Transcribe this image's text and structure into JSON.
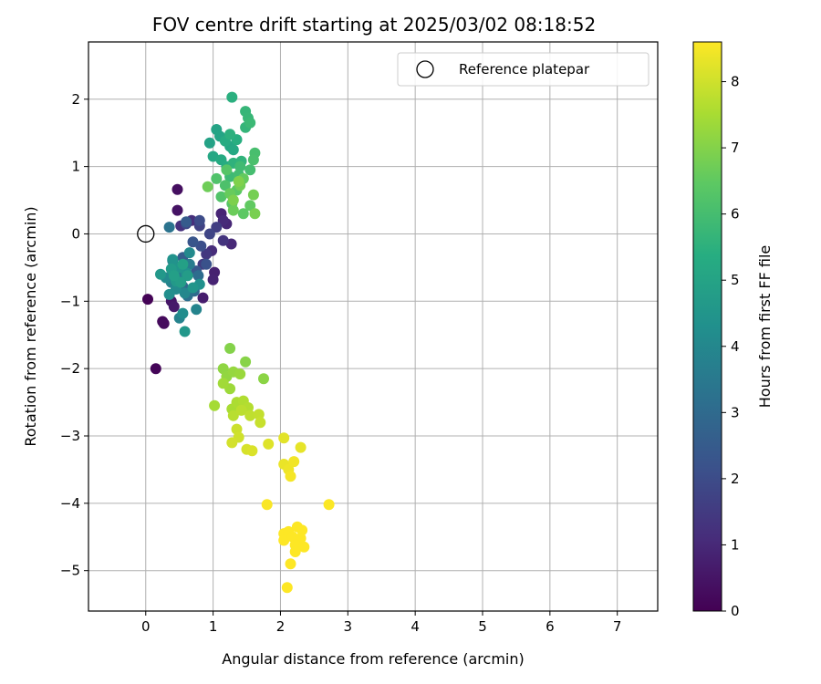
{
  "chart_data": {
    "type": "scatter",
    "title": "FOV centre drift starting at 2025/03/02 08:18:52",
    "xlabel": "Angular distance from reference (arcmin)",
    "ylabel": "Rotation from reference (arcmin)",
    "xlim": [
      -0.85,
      7.6
    ],
    "ylim": [
      -5.6,
      2.85
    ],
    "xticks": [
      0,
      1,
      2,
      3,
      4,
      5,
      6,
      7
    ],
    "xtick_labels": [
      "0",
      "1",
      "2",
      "3",
      "4",
      "5",
      "6",
      "7"
    ],
    "yticks": [
      2,
      1,
      0,
      -1,
      -2,
      -3,
      -4,
      -5
    ],
    "ytick_labels": [
      "2",
      "1",
      "0",
      "−1",
      "−2",
      "−3",
      "−4",
      "−5"
    ],
    "grid": true,
    "legend_position": "top-right",
    "reference": {
      "label": "Reference platepar",
      "x": 0,
      "y": 0
    },
    "colorbar": {
      "label": "Hours from first FF file",
      "colormap": "viridis",
      "range": [
        0,
        8.6
      ],
      "ticks": [
        0,
        1,
        2,
        3,
        4,
        5,
        6,
        7,
        8
      ],
      "tick_labels": [
        "0",
        "1",
        "2",
        "3",
        "4",
        "5",
        "6",
        "7",
        "8"
      ]
    },
    "points": [
      [
        0.03,
        -0.97,
        0.05
      ],
      [
        0.15,
        -2.0,
        0.1
      ],
      [
        0.25,
        -1.3,
        0.2
      ],
      [
        0.27,
        -1.33,
        0.25
      ],
      [
        0.47,
        0.66,
        0.35
      ],
      [
        0.47,
        0.35,
        0.45
      ],
      [
        0.38,
        -1.0,
        0.5
      ],
      [
        0.42,
        -1.08,
        0.6
      ],
      [
        0.85,
        -0.95,
        0.7
      ],
      [
        1.02,
        -0.57,
        0.8
      ],
      [
        1.0,
        -0.68,
        0.85
      ],
      [
        1.12,
        0.3,
        0.9
      ],
      [
        1.2,
        0.15,
        0.95
      ],
      [
        1.27,
        -0.15,
        1.0
      ],
      [
        1.15,
        0.2,
        1.05
      ],
      [
        0.98,
        -0.25,
        1.1
      ],
      [
        0.68,
        0.2,
        1.15
      ],
      [
        0.52,
        0.12,
        1.2
      ],
      [
        1.15,
        -0.1,
        1.3
      ],
      [
        0.9,
        -0.3,
        1.4
      ],
      [
        0.85,
        -0.45,
        1.5
      ],
      [
        1.05,
        0.1,
        1.6
      ],
      [
        0.8,
        0.12,
        1.7
      ],
      [
        0.95,
        0.0,
        1.8
      ],
      [
        0.6,
        0.15,
        1.9
      ],
      [
        0.8,
        0.2,
        2.0
      ],
      [
        0.82,
        -0.18,
        2.1
      ],
      [
        0.9,
        -0.45,
        2.2
      ],
      [
        0.7,
        -0.12,
        2.3
      ],
      [
        0.75,
        -0.55,
        2.4
      ],
      [
        0.6,
        0.18,
        2.5
      ],
      [
        0.55,
        -0.35,
        2.6
      ],
      [
        0.48,
        -0.58,
        2.7
      ],
      [
        0.42,
        -0.68,
        2.8
      ],
      [
        0.55,
        -0.78,
        2.9
      ],
      [
        0.72,
        -0.85,
        3.0
      ],
      [
        0.78,
        -0.62,
        3.1
      ],
      [
        0.62,
        -0.92,
        3.2
      ],
      [
        0.35,
        0.1,
        3.3
      ],
      [
        0.4,
        -0.4,
        3.4
      ],
      [
        0.45,
        -0.55,
        3.5
      ],
      [
        0.65,
        -0.45,
        3.6
      ],
      [
        0.52,
        -0.68,
        3.7
      ],
      [
        0.38,
        -0.72,
        3.8
      ],
      [
        0.5,
        -1.25,
        3.85
      ],
      [
        0.75,
        -1.12,
        3.9
      ],
      [
        0.58,
        -0.88,
        4.0
      ],
      [
        0.3,
        -0.65,
        4.05
      ],
      [
        0.65,
        -0.28,
        4.1
      ],
      [
        0.45,
        -0.82,
        4.15
      ],
      [
        0.55,
        -1.18,
        4.2
      ],
      [
        0.35,
        -0.9,
        4.25
      ],
      [
        0.8,
        -0.75,
        4.3
      ],
      [
        0.6,
        -0.58,
        4.35
      ],
      [
        0.4,
        -0.38,
        4.4
      ],
      [
        0.5,
        -0.5,
        4.45
      ],
      [
        0.7,
        -0.8,
        4.5
      ],
      [
        0.58,
        -1.45,
        4.55
      ],
      [
        0.22,
        -0.6,
        4.6
      ],
      [
        0.45,
        -0.7,
        4.65
      ],
      [
        0.38,
        -0.52,
        4.7
      ],
      [
        0.62,
        -0.62,
        4.75
      ],
      [
        0.52,
        -0.72,
        4.8
      ],
      [
        0.42,
        -0.62,
        4.85
      ],
      [
        0.55,
        -0.45,
        4.9
      ],
      [
        0.95,
        1.35,
        4.95
      ],
      [
        1.05,
        1.55,
        5.0
      ],
      [
        1.1,
        1.45,
        5.05
      ],
      [
        1.25,
        1.3,
        5.1
      ],
      [
        1.0,
        1.15,
        5.15
      ],
      [
        1.3,
        1.25,
        5.2
      ],
      [
        1.12,
        1.1,
        5.25
      ],
      [
        1.18,
        1.38,
        5.3
      ],
      [
        1.2,
        1.0,
        5.35
      ],
      [
        1.35,
        1.4,
        5.4
      ],
      [
        1.28,
        2.03,
        5.45
      ],
      [
        1.25,
        1.48,
        5.5
      ],
      [
        1.3,
        1.05,
        5.55
      ],
      [
        1.42,
        1.08,
        5.6
      ],
      [
        1.48,
        1.58,
        5.65
      ],
      [
        1.48,
        1.82,
        5.7
      ],
      [
        1.52,
        1.72,
        5.75
      ],
      [
        1.55,
        1.65,
        5.8
      ],
      [
        1.25,
        0.85,
        5.85
      ],
      [
        1.4,
        1.0,
        5.9
      ],
      [
        1.38,
        0.88,
        5.95
      ],
      [
        1.55,
        0.95,
        6.0
      ],
      [
        1.62,
        1.2,
        6.05
      ],
      [
        1.6,
        1.1,
        6.1
      ],
      [
        1.18,
        0.72,
        6.15
      ],
      [
        1.05,
        0.82,
        6.2
      ],
      [
        1.12,
        0.55,
        6.25
      ],
      [
        1.2,
        0.95,
        6.3
      ],
      [
        1.28,
        0.45,
        6.35
      ],
      [
        1.35,
        0.65,
        6.4
      ],
      [
        1.45,
        0.3,
        6.45
      ],
      [
        1.55,
        0.42,
        6.5
      ],
      [
        1.45,
        0.82,
        6.55
      ],
      [
        1.25,
        0.6,
        6.6
      ],
      [
        1.3,
        0.35,
        6.65
      ],
      [
        0.92,
        0.7,
        6.7
      ],
      [
        1.4,
        0.72,
        6.75
      ],
      [
        1.6,
        0.58,
        6.8
      ],
      [
        1.62,
        0.3,
        6.85
      ],
      [
        1.3,
        0.5,
        6.9
      ],
      [
        1.38,
        0.78,
        6.95
      ],
      [
        1.25,
        -1.7,
        7.0
      ],
      [
        1.48,
        -1.9,
        7.05
      ],
      [
        1.75,
        -2.15,
        7.1
      ],
      [
        1.15,
        -2.0,
        7.15
      ],
      [
        1.2,
        -2.12,
        7.2
      ],
      [
        1.3,
        -2.05,
        7.25
      ],
      [
        1.4,
        -2.08,
        7.3
      ],
      [
        1.25,
        -2.3,
        7.35
      ],
      [
        1.15,
        -2.22,
        7.4
      ],
      [
        1.02,
        -2.55,
        7.45
      ],
      [
        1.28,
        -2.6,
        7.5
      ],
      [
        1.35,
        -2.5,
        7.55
      ],
      [
        1.45,
        -2.48,
        7.6
      ],
      [
        1.52,
        -2.58,
        7.65
      ],
      [
        1.3,
        -2.7,
        7.7
      ],
      [
        1.42,
        -2.62,
        7.75
      ],
      [
        1.55,
        -2.7,
        7.8
      ],
      [
        1.68,
        -2.68,
        7.85
      ],
      [
        1.7,
        -2.8,
        7.9
      ],
      [
        1.35,
        -2.9,
        7.95
      ],
      [
        1.38,
        -3.02,
        8.0
      ],
      [
        1.28,
        -3.1,
        8.05
      ],
      [
        1.5,
        -3.2,
        8.1
      ],
      [
        1.58,
        -3.22,
        8.15
      ],
      [
        1.82,
        -3.12,
        8.2
      ],
      [
        2.05,
        -3.03,
        8.25
      ],
      [
        2.3,
        -3.17,
        8.3
      ],
      [
        2.05,
        -3.42,
        8.35
      ],
      [
        2.12,
        -3.5,
        8.4
      ],
      [
        2.2,
        -3.38,
        8.45
      ],
      [
        2.15,
        -3.6,
        8.5
      ],
      [
        1.8,
        -4.02,
        8.55
      ],
      [
        2.72,
        -4.02,
        8.58
      ],
      [
        2.05,
        -4.45,
        8.6
      ],
      [
        2.12,
        -4.42,
        8.6
      ],
      [
        2.25,
        -4.35,
        8.6
      ],
      [
        2.32,
        -4.4,
        8.6
      ],
      [
        2.05,
        -4.55,
        8.6
      ],
      [
        2.18,
        -4.5,
        8.6
      ],
      [
        2.3,
        -4.52,
        8.6
      ],
      [
        2.22,
        -4.62,
        8.6
      ],
      [
        2.35,
        -4.65,
        8.6
      ],
      [
        2.22,
        -4.72,
        8.6
      ],
      [
        2.15,
        -4.9,
        8.6
      ],
      [
        2.1,
        -5.25,
        8.6
      ]
    ]
  }
}
